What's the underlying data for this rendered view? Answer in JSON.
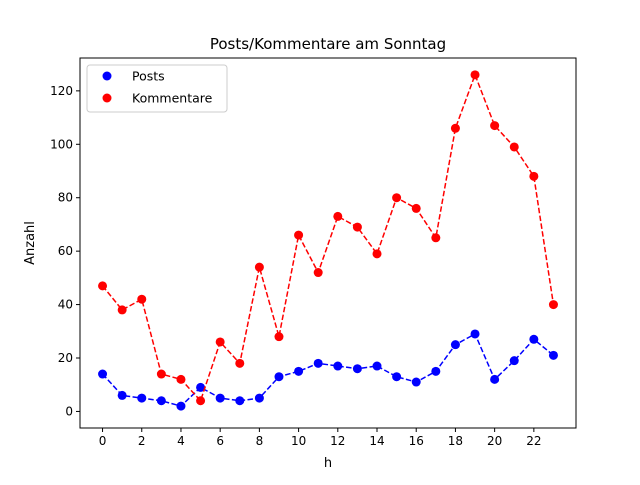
{
  "chart_data": {
    "type": "line",
    "title": "Posts/Kommentare am Sonntag",
    "xlabel": "h",
    "ylabel": "Anzahl",
    "xlim": [
      -1.15,
      24.15
    ],
    "ylim": [
      -6.2,
      132.3
    ],
    "xticks": [
      0,
      2,
      4,
      6,
      8,
      10,
      12,
      14,
      16,
      18,
      20,
      22
    ],
    "xtick_labels": [
      "0",
      "2",
      "4",
      "6",
      "8",
      "10",
      "12",
      "14",
      "16",
      "18",
      "20",
      "22"
    ],
    "yticks": [
      0,
      20,
      40,
      60,
      80,
      100,
      120
    ],
    "ytick_labels": [
      "0",
      "20",
      "40",
      "60",
      "80",
      "100",
      "120"
    ],
    "grid": false,
    "legend_position": "top-left",
    "x": [
      0,
      1,
      2,
      3,
      4,
      5,
      6,
      7,
      8,
      9,
      10,
      11,
      12,
      13,
      14,
      15,
      16,
      17,
      18,
      19,
      20,
      21,
      22,
      23
    ],
    "series": [
      {
        "name": "Posts",
        "color": "#0000ff",
        "line_style": "dashed",
        "marker": "circle",
        "values": [
          14,
          6,
          5,
          4,
          2,
          9,
          5,
          4,
          5,
          13,
          15,
          18,
          17,
          16,
          17,
          13,
          11,
          15,
          25,
          29,
          12,
          19,
          27,
          21
        ]
      },
      {
        "name": "Kommentare",
        "color": "#ff0000",
        "line_style": "dashed",
        "marker": "circle",
        "values": [
          47,
          38,
          42,
          14,
          12,
          4,
          26,
          18,
          54,
          28,
          66,
          52,
          73,
          69,
          59,
          80,
          76,
          65,
          106,
          126,
          107,
          99,
          88,
          40
        ]
      }
    ]
  }
}
